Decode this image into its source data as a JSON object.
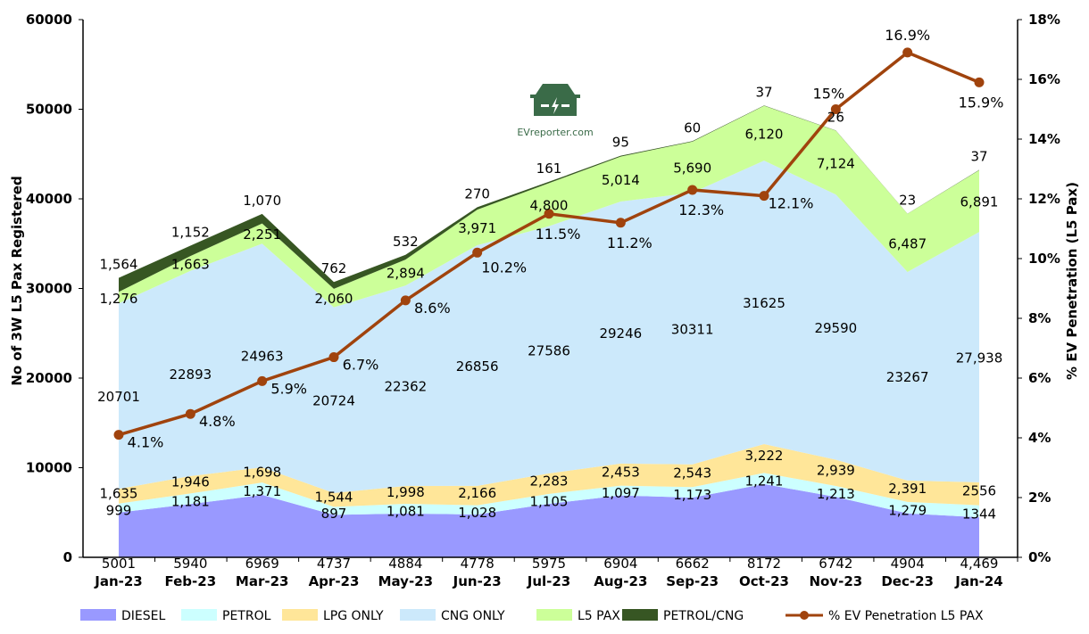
{
  "chart_data": {
    "type": "area",
    "title": "",
    "xlabel": "",
    "ylabel": "No of 3W  L5 Pax Registered",
    "y2label": "% EV Penetration (L5 Pax)",
    "ylim": [
      0,
      60000
    ],
    "y2lim": [
      0,
      18
    ],
    "yticks": [
      "0",
      "10000",
      "20000",
      "30000",
      "40000",
      "50000",
      "60000"
    ],
    "y2ticks": [
      "0%",
      "2%",
      "4%",
      "6%",
      "8%",
      "10%",
      "12%",
      "14%",
      "16%",
      "18%"
    ],
    "grid": false,
    "legend_placement": "bottom",
    "watermark": "EVreporter.com",
    "categories": [
      "Jan-23",
      "Feb-23",
      "Mar-23",
      "Apr-23",
      "May-23",
      "Jun-23",
      "Jul-23",
      "Aug-23",
      "Sep-23",
      "Oct-23",
      "Nov-23",
      "Dec-23",
      "Jan-24"
    ],
    "series": [
      {
        "name": "DIESEL",
        "color": "#9999ff",
        "values": [
          5001,
          5940,
          6969,
          4737,
          4884,
          4778,
          5975,
          6904,
          6662,
          8172,
          6742,
          4904,
          4469
        ],
        "labels": [
          "5001",
          "5940",
          "6969",
          "4737",
          "4884",
          "4778",
          "5975",
          "6904",
          "6662",
          "8172",
          "6742",
          "4904",
          "4,469"
        ]
      },
      {
        "name": "PETROL",
        "color": "#ccffff",
        "values": [
          999,
          1181,
          1371,
          897,
          1081,
          1028,
          1105,
          1097,
          1173,
          1241,
          1213,
          1279,
          1344
        ],
        "labels": [
          "999",
          "1,181",
          "1,371",
          "897",
          "1,081",
          "1,028",
          "1,105",
          "1,097",
          "1,173",
          "1,241",
          "1,213",
          "1,279",
          "1344"
        ]
      },
      {
        "name": "LPG ONLY",
        "color": "#ffe699",
        "values": [
          1635,
          1946,
          1698,
          1544,
          1998,
          2166,
          2283,
          2453,
          2543,
          3222,
          2939,
          2391,
          2556
        ],
        "labels": [
          "1,635",
          "1,946",
          "1,698",
          "1,544",
          "1,998",
          "2,166",
          "2,283",
          "2,453",
          "2,543",
          "3,222",
          "2,939",
          "2,391",
          "2556"
        ]
      },
      {
        "name": "CNG ONLY",
        "color": "#cce9fb",
        "values": [
          20701,
          22893,
          24963,
          20724,
          22362,
          26856,
          27586,
          29246,
          30311,
          31625,
          29590,
          23267,
          27938
        ],
        "labels": [
          "20701",
          "22893",
          "24963",
          "20724",
          "22362",
          "26856",
          "27586",
          "29246",
          "30311",
          "31625",
          "29590",
          "23267",
          "27,938"
        ]
      },
      {
        "name": "L5 PAX",
        "color": "#ccff99",
        "values": [
          1276,
          1663,
          2251,
          2060,
          2894,
          3971,
          4800,
          5014,
          5690,
          6120,
          7124,
          6487,
          6891
        ],
        "labels": [
          "1,276",
          "1,663",
          "2,251",
          "2,060",
          "2,894",
          "3,971",
          "4,800",
          "5,014",
          "5,690",
          "6,120",
          "7,124",
          "6,487",
          "6,891"
        ]
      },
      {
        "name": "PETROL/CNG",
        "color": "#375623",
        "values": [
          1564,
          1152,
          1070,
          762,
          532,
          270,
          161,
          95,
          60,
          37,
          26,
          23,
          37
        ],
        "labels": [
          "1,564",
          "1,152",
          "1,070",
          "762",
          "532",
          "270",
          "161",
          "95",
          "60",
          "37",
          "26",
          "23",
          "37"
        ]
      }
    ],
    "line_series": {
      "name": "% EV Penetration L5 PAX",
      "color": "#a0430d",
      "axis": "right",
      "values": [
        4.1,
        4.8,
        5.9,
        6.7,
        8.6,
        10.2,
        11.5,
        11.2,
        12.3,
        12.1,
        15,
        16.9,
        15.9
      ],
      "labels": [
        "4.1%",
        "4.8%",
        "5.9%",
        "6.7%",
        "8.6%",
        "10.2%",
        "11.5%",
        "11.2%",
        "12.3%",
        "12.1%",
        "15%",
        "16.9%",
        "15.9%"
      ]
    }
  }
}
